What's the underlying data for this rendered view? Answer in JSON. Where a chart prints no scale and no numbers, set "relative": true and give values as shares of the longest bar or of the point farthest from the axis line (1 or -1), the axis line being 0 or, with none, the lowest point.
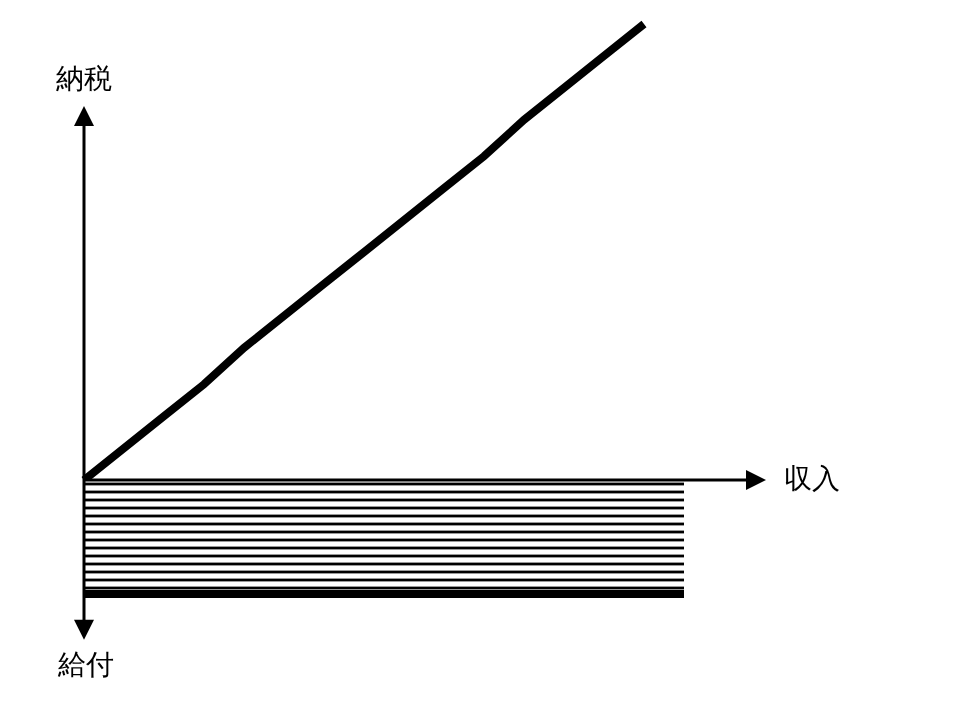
{
  "chart_data": {
    "type": "line",
    "relative": true,
    "xlabel": "収入",
    "ylabel": "納税",
    "annotations": [
      "給付"
    ],
    "categories": [
      null,
      null,
      null,
      null,
      null,
      null,
      null,
      null,
      null,
      null,
      null,
      null,
      null,
      null,
      null,
      null
    ],
    "series": [
      {
        "type": "line",
        "color": "#000000",
        "values": [
          0,
          0.07,
          0.14,
          0.21,
          0.29,
          0.36,
          0.43,
          0.5,
          0.57,
          0.64,
          0.71,
          0.79,
          0.86,
          0.93,
          1,
          null
        ]
      },
      {
        "type": "area",
        "color": "#000000",
        "values": [
          -0.25,
          -0.25,
          -0.25,
          -0.25,
          -0.25,
          -0.25,
          -0.25,
          -0.25,
          -0.25,
          -0.25,
          -0.25,
          -0.25,
          -0.25,
          -0.25,
          -0.25,
          -0.25
        ]
      }
    ]
  }
}
